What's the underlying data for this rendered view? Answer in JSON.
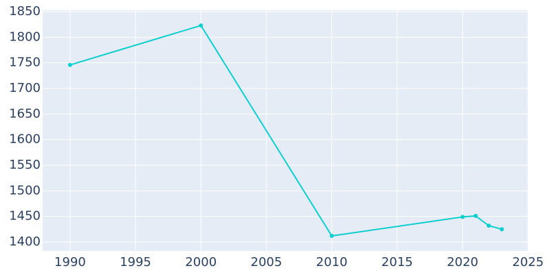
{
  "chart_data": {
    "type": "line",
    "x": [
      1990,
      2000,
      2010,
      2020,
      2021,
      2022,
      2023
    ],
    "series": [
      {
        "color": "#0bcfcf",
        "values": [
          1746,
          1823,
          1412,
          1449,
          1451,
          1432,
          1425
        ]
      }
    ],
    "xlim": [
      1987.9,
      2025
    ],
    "xticks": [
      1990,
      1995,
      2000,
      2005,
      2010,
      2015,
      2020,
      2025
    ],
    "ylim": [
      1382.6,
      1852.7
    ],
    "yticks": [
      1400,
      1450,
      1500,
      1550,
      1600,
      1650,
      1700,
      1750,
      1800,
      1850
    ],
    "grid": true
  }
}
